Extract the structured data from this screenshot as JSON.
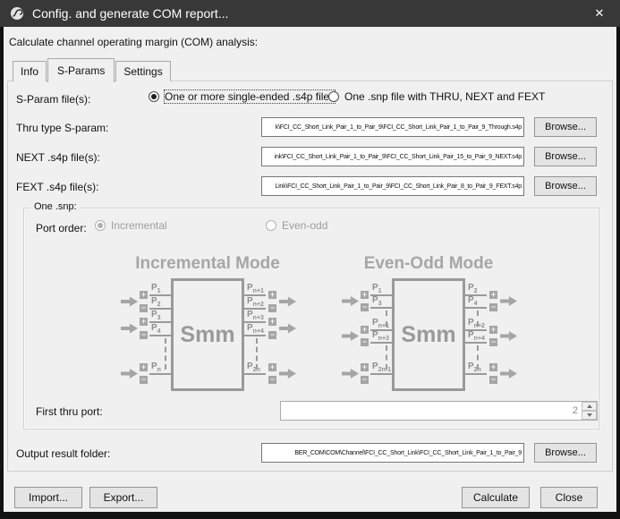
{
  "window": {
    "title": "Config. and generate COM report...",
    "close_glyph": "✕"
  },
  "header": {
    "description": "Calculate channel operating margin (COM) analysis:"
  },
  "tabs": [
    {
      "label": "Info",
      "active": false
    },
    {
      "label": "S-Params",
      "active": true
    },
    {
      "label": "Settings",
      "active": false
    }
  ],
  "sparam_source": {
    "label": "S-Param file(s):",
    "options": [
      {
        "label": "One or more single-ended .s4p files",
        "selected": true
      },
      {
        "label": "One .snp file with THRU, NEXT and FEXT",
        "selected": false
      }
    ]
  },
  "file_rows": [
    {
      "label": "Thru type S-param:",
      "value": "k\\FCI_CC_Short_Link_Pair_1_to_Pair_9\\FCI_CC_Short_Link_Pair_1_to_Pair_9_Through.s4p",
      "browse_label": "Browse..."
    },
    {
      "label": "NEXT .s4p file(s):",
      "value": "ink\\FCI_CC_Short_Link_Pair_1_to_Pair_9\\FCI_CC_Short_Link_Pair_15_to_Pair_9_NEXT.s4p",
      "browse_label": "Browse..."
    },
    {
      "label": "FEXT .s4p file(s):",
      "value": "Link\\FCI_CC_Short_Link_Pair_1_to_Pair_9\\FCI_CC_Short_Link_Pair_8_to_Pair_9_FEXT.s4p",
      "browse_label": "Browse..."
    }
  ],
  "one_snp": {
    "group_label": "One .snp:",
    "port_order_label": "Port order:",
    "options": [
      {
        "label": "Incremental",
        "selected": true
      },
      {
        "label": "Even-odd",
        "selected": false
      }
    ],
    "diagrams": [
      {
        "title": "Incremental Mode",
        "box_label": "Smm",
        "left_ports": [
          "P1",
          "P2",
          "P3",
          "P4",
          "Pn"
        ],
        "right_ports": [
          "Pn+1",
          "Pn+2",
          "Pn+3",
          "Pn+4",
          "P2n"
        ]
      },
      {
        "title": "Even-Odd Mode",
        "box_label": "Smm",
        "left_ports": [
          "P1",
          "P3",
          "Pn+1",
          "Pn+3",
          "P2n-1"
        ],
        "right_ports": [
          "P2",
          "P4",
          "Pn+2",
          "Pn+4",
          "P2n"
        ]
      }
    ],
    "first_thru_port": {
      "label": "First thru port:",
      "value": "2"
    }
  },
  "output": {
    "label": "Output result folder:",
    "value": "BER_COM\\COM\\Channel\\FCI_CC_Short_Link\\FCI_CC_Short_Link_Pair_1_to_Pair_9",
    "browse_label": "Browse..."
  },
  "footer": {
    "import_label": "Import...",
    "export_label": "Export...",
    "calculate_label": "Calculate",
    "close_label": "Close"
  },
  "colors": {
    "titlebar": "#383838",
    "dialog_bg": "#f0f0f0",
    "diagram_gray": "#9a9a9a",
    "field_border": "#767676"
  }
}
